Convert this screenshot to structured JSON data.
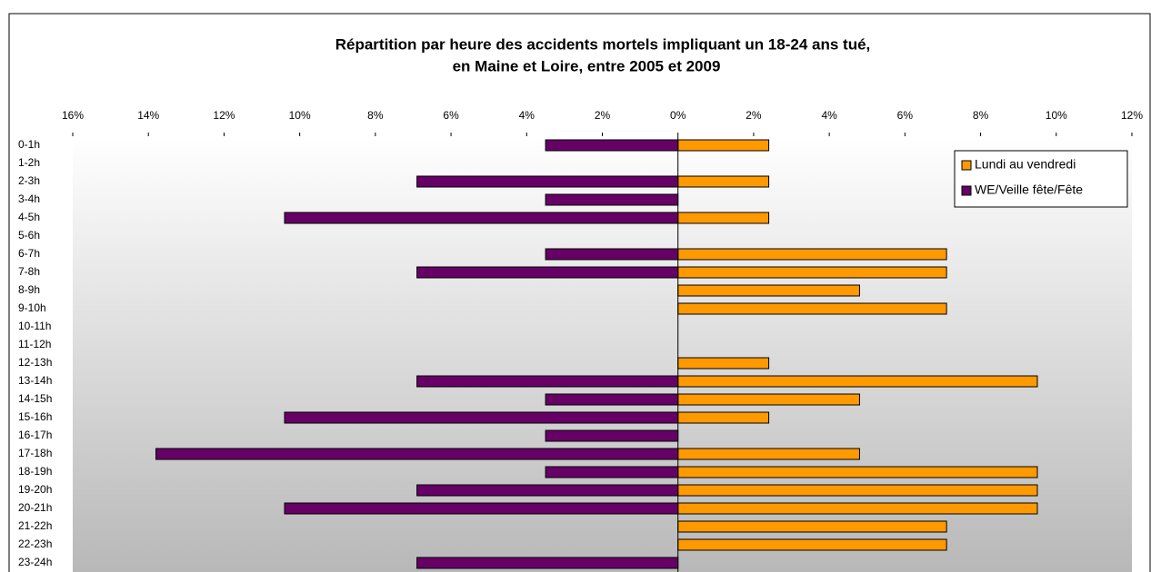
{
  "chart_data": {
    "type": "hbar",
    "title": "Répartition par heure des accidents mortels impliquant un 18-24 ans tué,",
    "subtitle": "en Maine et Loire, entre 2005 et 2009",
    "categories": [
      "0-1h",
      "1-2h",
      "2-3h",
      "3-4h",
      "4-5h",
      "5-6h",
      "6-7h",
      "7-8h",
      "8-9h",
      "9-10h",
      "10-11h",
      "11-12h",
      "12-13h",
      "13-14h",
      "14-15h",
      "15-16h",
      "16-17h",
      "17-18h",
      "18-19h",
      "19-20h",
      "20-21h",
      "21-22h",
      "22-23h",
      "23-24h"
    ],
    "series": [
      {
        "name": "Lundi au vendredi",
        "color": "#ff9900",
        "values": [
          2.4,
          0,
          2.4,
          0,
          2.4,
          0,
          7.1,
          7.1,
          4.8,
          7.1,
          0,
          0,
          2.4,
          9.5,
          4.8,
          2.4,
          0,
          4.8,
          9.5,
          9.5,
          9.5,
          7.1,
          7.1,
          0
        ]
      },
      {
        "name": "WE/Veille fête/Fête",
        "color": "#660066",
        "values": [
          -3.5,
          0,
          -6.9,
          -3.5,
          -10.4,
          0,
          -3.5,
          -6.9,
          0,
          0,
          0,
          0,
          0,
          -6.9,
          -3.5,
          -10.4,
          -3.5,
          -13.8,
          -3.5,
          -6.9,
          -10.4,
          0,
          0,
          -6.9
        ]
      }
    ],
    "xlim": [
      -16,
      12
    ],
    "xticks": [
      {
        "value": -16,
        "label": "16%"
      },
      {
        "value": -14,
        "label": "14%"
      },
      {
        "value": -12,
        "label": "12%"
      },
      {
        "value": -10,
        "label": "10%"
      },
      {
        "value": -8,
        "label": "8%"
      },
      {
        "value": -6,
        "label": "6%"
      },
      {
        "value": -4,
        "label": "4%"
      },
      {
        "value": -2,
        "label": "2%"
      },
      {
        "value": 0,
        "label": "0%"
      },
      {
        "value": 2,
        "label": "2%"
      },
      {
        "value": 4,
        "label": "4%"
      },
      {
        "value": 6,
        "label": "6%"
      },
      {
        "value": 8,
        "label": "8%"
      },
      {
        "value": 10,
        "label": "10%"
      },
      {
        "value": 12,
        "label": "12%"
      }
    ],
    "legend": "upper right"
  }
}
